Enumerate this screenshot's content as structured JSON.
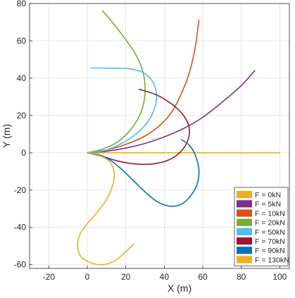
{
  "chart_data": {
    "type": "line",
    "title": "",
    "xlabel": "X (m)",
    "ylabel": "Y (m)",
    "xlim": [
      -30,
      105
    ],
    "ylim": [
      -62,
      80
    ],
    "xticks": [
      -20,
      0,
      20,
      40,
      60,
      80,
      100
    ],
    "yticks": [
      -60,
      -40,
      -20,
      0,
      20,
      40,
      60,
      80
    ],
    "grid": true,
    "legend_position": "bottom-right",
    "series": [
      {
        "name": "F = 0kN",
        "color": "#EDB120",
        "points": [
          [
            0,
            0
          ],
          [
            20,
            0
          ],
          [
            40,
            0
          ],
          [
            60,
            0
          ],
          [
            80,
            0
          ],
          [
            100,
            0
          ]
        ]
      },
      {
        "name": "F = 5kN",
        "color": "#7E2F8E",
        "points": [
          [
            0,
            0
          ],
          [
            10,
            0.8
          ],
          [
            20,
            2.5
          ],
          [
            30,
            5
          ],
          [
            40,
            8.5
          ],
          [
            50,
            13
          ],
          [
            60,
            19
          ],
          [
            70,
            27
          ],
          [
            80,
            36
          ],
          [
            87,
            44
          ]
        ]
      },
      {
        "name": "F = 10kN",
        "color": "#D95319",
        "points": [
          [
            0,
            0
          ],
          [
            10,
            1.5
          ],
          [
            20,
            4.5
          ],
          [
            30,
            9
          ],
          [
            38,
            15
          ],
          [
            44,
            22
          ],
          [
            49,
            32
          ],
          [
            53,
            43
          ],
          [
            56,
            56
          ],
          [
            58,
            71
          ]
        ]
      },
      {
        "name": "F = 20kN",
        "color": "#77AC30",
        "points": [
          [
            0,
            0
          ],
          [
            8,
            2
          ],
          [
            16,
            6
          ],
          [
            23,
            13
          ],
          [
            28,
            22
          ],
          [
            30,
            32
          ],
          [
            29,
            43
          ],
          [
            25,
            53
          ],
          [
            19,
            62
          ],
          [
            13,
            70
          ],
          [
            8,
            76
          ]
        ]
      },
      {
        "name": "F = 50kN",
        "color": "#4DBEEE",
        "points": [
          [
            0,
            0
          ],
          [
            8,
            1
          ],
          [
            16,
            4
          ],
          [
            24,
            9
          ],
          [
            31,
            16
          ],
          [
            35,
            24
          ],
          [
            36,
            31
          ],
          [
            34,
            38
          ],
          [
            29,
            43
          ],
          [
            22,
            45
          ],
          [
            14,
            45.3
          ],
          [
            2,
            45.5
          ]
        ]
      },
      {
        "name": "F = 70kN",
        "color": "#A2142F",
        "points": [
          [
            0,
            0
          ],
          [
            8,
            -2
          ],
          [
            16,
            -4.5
          ],
          [
            25,
            -6
          ],
          [
            34,
            -6
          ],
          [
            42,
            -4
          ],
          [
            48,
            0
          ],
          [
            52,
            6
          ],
          [
            53,
            13
          ],
          [
            50,
            20
          ],
          [
            44,
            26
          ],
          [
            36,
            31
          ],
          [
            27,
            34
          ]
        ]
      },
      {
        "name": "F = 90kN",
        "color": "#0072BD",
        "points": [
          [
            0,
            0
          ],
          [
            6,
            -1
          ],
          [
            12,
            -4
          ],
          [
            18,
            -9
          ],
          [
            24,
            -15
          ],
          [
            30,
            -21
          ],
          [
            36,
            -26
          ],
          [
            42,
            -28.5
          ],
          [
            48,
            -28
          ],
          [
            53,
            -24
          ],
          [
            57,
            -17
          ],
          [
            58,
            -9
          ],
          [
            56,
            -1
          ],
          [
            53,
            4
          ],
          [
            49,
            7
          ]
        ]
      },
      {
        "name": "F = 130kN",
        "color": "#EDB120",
        "points": [
          [
            0,
            0
          ],
          [
            5,
            -1
          ],
          [
            10,
            -3.5
          ],
          [
            13,
            -7
          ],
          [
            14,
            -12
          ],
          [
            13,
            -18
          ],
          [
            10,
            -25
          ],
          [
            5,
            -32
          ],
          [
            0,
            -38
          ],
          [
            -4,
            -44
          ],
          [
            -5,
            -51
          ],
          [
            -3,
            -56
          ],
          [
            2,
            -59
          ],
          [
            8,
            -60
          ],
          [
            14,
            -58
          ],
          [
            19,
            -54
          ],
          [
            24,
            -49
          ]
        ]
      }
    ]
  }
}
